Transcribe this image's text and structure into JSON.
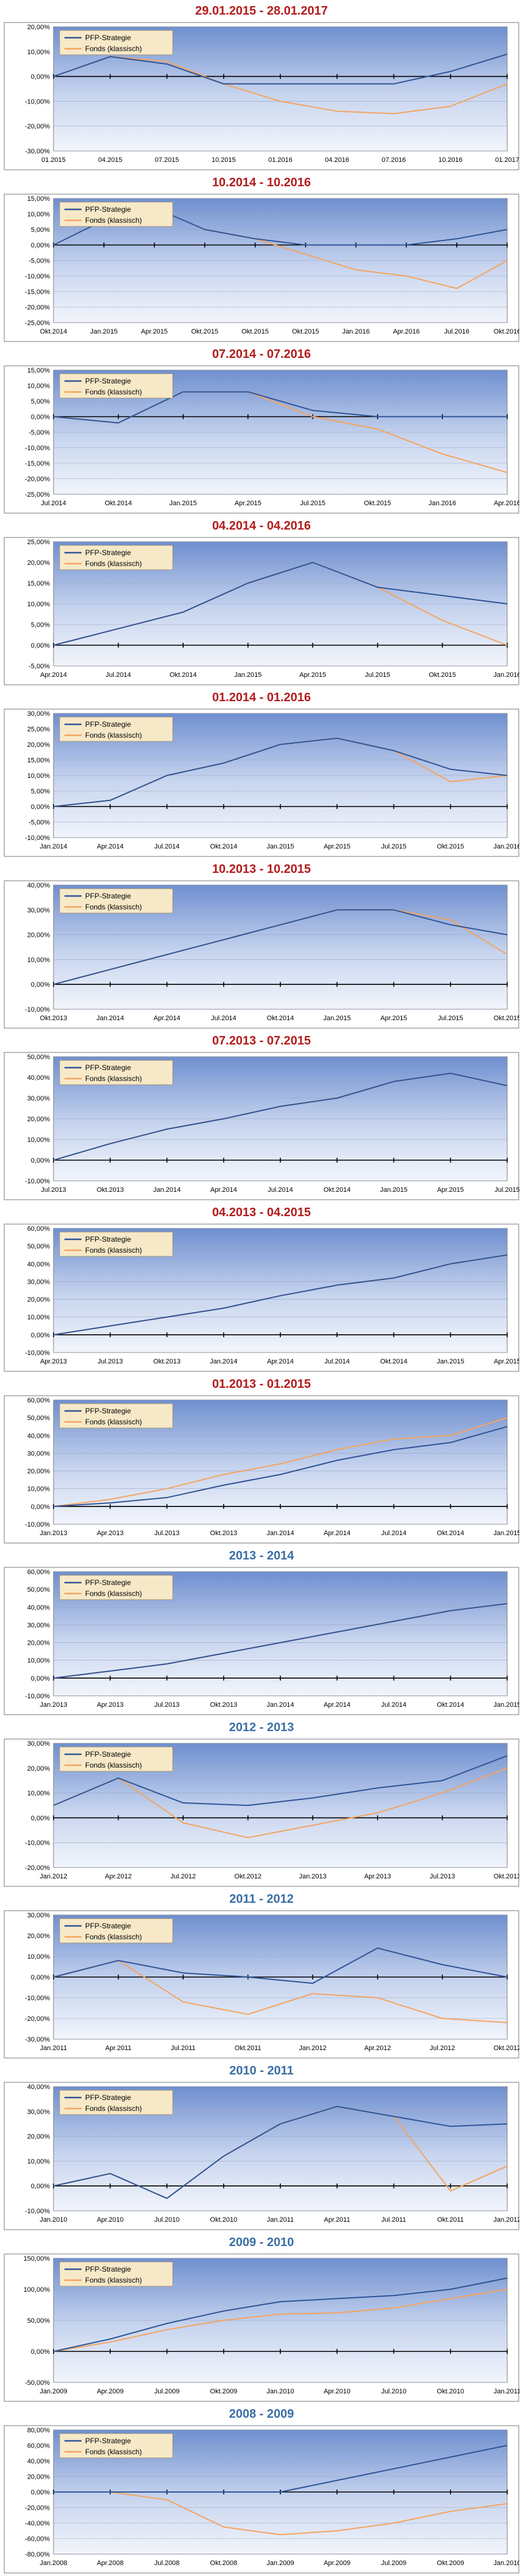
{
  "colors": {
    "pfp": "#2f5597",
    "fonds": "#f4a460",
    "title_red": "#b31b1b",
    "title_blue": "#3b6ea5"
  },
  "chart_data": [
    {
      "type": "line",
      "title": "29.01.2015 - 28.01.2017",
      "title_color": "red",
      "x": [
        "01.2015",
        "04.2015",
        "07.2015",
        "10.2015",
        "01.2016",
        "04.2016",
        "07.2016",
        "10.2016",
        "01.2017"
      ],
      "ylim": [
        -30,
        20
      ],
      "ystep": 10,
      "ydec": true,
      "legend": [
        "PFP-Strategie",
        "Fonds (klassisch)"
      ],
      "series": [
        {
          "name": "PFP-Strategie",
          "values": [
            0,
            8,
            5,
            -3,
            -3,
            -3,
            -3,
            2,
            9
          ]
        },
        {
          "name": "Fonds (klassisch)",
          "values": [
            0,
            8,
            6,
            -3,
            -10,
            -14,
            -15,
            -12,
            -3
          ]
        }
      ]
    },
    {
      "type": "line",
      "title": "10.2014 - 10.2016",
      "title_color": "red",
      "x": [
        "Okt.2014",
        "Jan.2015",
        "Apr.2015",
        "Okt.2015",
        "Okt.2015",
        "Okt.2015",
        "Jan.2016",
        "Apr.2016",
        "Jul.2016",
        "Okt.2016"
      ],
      "ylim": [
        -25,
        15
      ],
      "ystep": 5,
      "ydec": true,
      "legend": [
        "PFP-Strategie",
        "Fonds (klassisch)"
      ],
      "series": [
        {
          "name": "PFP-Strategie",
          "values": [
            0,
            8,
            12,
            5,
            2,
            0,
            0,
            0,
            2,
            5
          ]
        },
        {
          "name": "Fonds (klassisch)",
          "values": [
            0,
            8,
            12,
            5,
            2,
            -3,
            -8,
            -10,
            -14,
            -5
          ]
        }
      ]
    },
    {
      "type": "line",
      "title": "07.2014 - 07.2016",
      "title_color": "red",
      "x": [
        "Jul.2014",
        "Okt.2014",
        "Jan.2015",
        "Apr.2015",
        "Jul.2015",
        "Okt.2015",
        "Jan.2016",
        "Apr.2016"
      ],
      "ylim": [
        -25,
        15
      ],
      "ystep": 5,
      "ydec": true,
      "legend": [
        "PFP-Strategie",
        "Fonds (klassisch)"
      ],
      "series": [
        {
          "name": "PFP-Strategie",
          "values": [
            0,
            -2,
            8,
            8,
            2,
            0,
            0,
            0
          ]
        },
        {
          "name": "Fonds (klassisch)",
          "values": [
            0,
            -2,
            8,
            8,
            0,
            -4,
            -12,
            -18
          ]
        }
      ]
    },
    {
      "type": "line",
      "title": "04.2014 - 04.2016",
      "title_color": "red",
      "x": [
        "Apr.2014",
        "Jul.2014",
        "Okt.2014",
        "Jan.2015",
        "Apr.2015",
        "Jul.2015",
        "Okt.2015",
        "Jan.2016"
      ],
      "ylim": [
        -5,
        25
      ],
      "ystep": 5,
      "ydec": true,
      "legend": [
        "PFP-Strategie",
        "Fonds (klassisch)"
      ],
      "series": [
        {
          "name": "PFP-Strategie",
          "values": [
            0,
            4,
            8,
            15,
            20,
            14,
            12,
            10
          ]
        },
        {
          "name": "Fonds (klassisch)",
          "values": [
            0,
            4,
            8,
            15,
            20,
            14,
            6,
            0
          ]
        }
      ]
    },
    {
      "type": "line",
      "title": "01.2014 - 01.2016",
      "title_color": "red",
      "x": [
        "Jan.2014",
        "Apr.2014",
        "Jul.2014",
        "Okt.2014",
        "Jan.2015",
        "Apr.2015",
        "Jul.2015",
        "Okt.2015",
        "Jan.2016"
      ],
      "ylim": [
        -10,
        30
      ],
      "ystep": 5,
      "ydec": true,
      "legend": [
        "PFP-Strategie",
        "Fonds (klassisch)"
      ],
      "series": [
        {
          "name": "PFP-Strategie",
          "values": [
            0,
            2,
            10,
            14,
            20,
            22,
            18,
            12,
            10
          ]
        },
        {
          "name": "Fonds (klassisch)",
          "values": [
            0,
            2,
            10,
            14,
            20,
            22,
            18,
            8,
            10
          ]
        }
      ]
    },
    {
      "type": "line",
      "title": "10.2013 - 10.2015",
      "title_color": "red",
      "x": [
        "Okt.2013",
        "Jan.2014",
        "Apr.2014",
        "Jul.2014",
        "Okt.2014",
        "Jan.2015",
        "Apr.2015",
        "Jul.2015",
        "Okt.2015"
      ],
      "ylim": [
        -10,
        40
      ],
      "ystep": 10,
      "ydec": true,
      "legend": [
        "PFP-Strategie",
        "Fonds (klassisch)"
      ],
      "series": [
        {
          "name": "PFP-Strategie",
          "values": [
            0,
            6,
            12,
            18,
            24,
            30,
            30,
            24,
            20
          ]
        },
        {
          "name": "Fonds (klassisch)",
          "values": [
            0,
            6,
            12,
            18,
            24,
            30,
            30,
            26,
            12
          ]
        }
      ]
    },
    {
      "type": "line",
      "title": "07.2013 - 07.2015",
      "title_color": "red",
      "x": [
        "Jul.2013",
        "Okt.2013",
        "Jan.2014",
        "Apr.2014",
        "Jul.2014",
        "Okt.2014",
        "Jan.2015",
        "Apr.2015",
        "Jul.2015"
      ],
      "ylim": [
        -10,
        50
      ],
      "ystep": 10,
      "ydec": true,
      "legend": [
        "PFP-Strategie",
        "Fonds (klassisch)"
      ],
      "series": [
        {
          "name": "PFP-Strategie",
          "values": [
            0,
            8,
            15,
            20,
            26,
            30,
            38,
            42,
            36
          ]
        },
        {
          "name": "Fonds (klassisch)",
          "values": [
            0,
            8,
            15,
            20,
            26,
            30,
            38,
            42,
            36
          ]
        }
      ]
    },
    {
      "type": "line",
      "title": "04.2013 - 04.2015",
      "title_color": "red",
      "x": [
        "Apr.2013",
        "Jul.2013",
        "Okt.2013",
        "Jan.2014",
        "Apr.2014",
        "Jul.2014",
        "Okt.2014",
        "Jan.2015",
        "Apr.2015"
      ],
      "ylim": [
        -10,
        60
      ],
      "ystep": 10,
      "ydec": true,
      "legend": [
        "PFP-Strategie",
        "Fonds (klassisch)"
      ],
      "series": [
        {
          "name": "PFP-Strategie",
          "values": [
            0,
            5,
            10,
            15,
            22,
            28,
            32,
            40,
            45
          ]
        },
        {
          "name": "Fonds (klassisch)",
          "values": [
            0,
            5,
            10,
            15,
            22,
            28,
            32,
            40,
            45
          ]
        }
      ]
    },
    {
      "type": "line",
      "title": "01.2013 - 01.2015",
      "title_color": "red",
      "x": [
        "Jan.2013",
        "Apr.2013",
        "Jul.2013",
        "Okt.2013",
        "Jan.2014",
        "Apr.2014",
        "Jul.2014",
        "Okt.2014",
        "Jan.2015"
      ],
      "ylim": [
        -10,
        60
      ],
      "ystep": 10,
      "ydec": true,
      "legend": [
        "PFP-Strategie",
        "Fonds (klassisch)"
      ],
      "series": [
        {
          "name": "PFP-Strategie",
          "values": [
            0,
            2,
            5,
            12,
            18,
            26,
            32,
            36,
            45
          ]
        },
        {
          "name": "Fonds (klassisch)",
          "values": [
            0,
            4,
            10,
            18,
            24,
            32,
            38,
            40,
            50
          ]
        }
      ]
    },
    {
      "type": "line",
      "title": "2013 - 2014",
      "title_color": "blue",
      "x": [
        "Jan.2013",
        "Apr.2013",
        "Jul.2013",
        "Okt.2013",
        "Jan.2014",
        "Apr.2014",
        "Jul.2014",
        "Okt.2014",
        "Jan.2015"
      ],
      "ylim": [
        -10,
        60
      ],
      "ystep": 10,
      "ydec": true,
      "legend": [
        "PFP-Strategie",
        "Fonds (klassisch)"
      ],
      "series": [
        {
          "name": "PFP-Strategie",
          "values": [
            0,
            4,
            8,
            14,
            20,
            26,
            32,
            38,
            42
          ]
        },
        {
          "name": "Fonds (klassisch)",
          "values": [
            0,
            4,
            8,
            14,
            20,
            26,
            32,
            38,
            42
          ]
        }
      ]
    },
    {
      "type": "line",
      "title": "2012 - 2013",
      "title_color": "blue",
      "x": [
        "Jan.2012",
        "Apr.2012",
        "Jul.2012",
        "Okt.2012",
        "Jan.2013",
        "Apr.2013",
        "Jul.2013",
        "Okt.2013"
      ],
      "ylim": [
        -20,
        30
      ],
      "ystep": 10,
      "ydec": true,
      "legend": [
        "PFP-Strategie",
        "Fonds (klassisch)"
      ],
      "series": [
        {
          "name": "PFP-Strategie",
          "values": [
            5,
            16,
            6,
            5,
            8,
            12,
            15,
            25
          ]
        },
        {
          "name": "Fonds (klassisch)",
          "values": [
            5,
            16,
            -2,
            -8,
            -3,
            2,
            10,
            20
          ]
        }
      ]
    },
    {
      "type": "line",
      "title": "2011 - 2012",
      "title_color": "blue",
      "x": [
        "Jan.2011",
        "Apr.2011",
        "Jul.2011",
        "Okt.2011",
        "Jan.2012",
        "Apr.2012",
        "Jul.2012",
        "Okt.2012"
      ],
      "ylim": [
        -30,
        30
      ],
      "ystep": 10,
      "ydec": true,
      "legend": [
        "PFP-Strategie",
        "Fonds (klassisch)"
      ],
      "series": [
        {
          "name": "PFP-Strategie",
          "values": [
            0,
            8,
            2,
            0,
            -3,
            14,
            6,
            0
          ]
        },
        {
          "name": "Fonds (klassisch)",
          "values": [
            0,
            8,
            -12,
            -18,
            -8,
            -10,
            -20,
            -22
          ]
        }
      ]
    },
    {
      "type": "line",
      "title": "2010 - 2011",
      "title_color": "blue",
      "x": [
        "Jan.2010",
        "Apr.2010",
        "Jul.2010",
        "Okt.2010",
        "Jan.2011",
        "Apr.2011",
        "Jul.2011",
        "Okt.2011",
        "Jan.2012"
      ],
      "ylim": [
        -10,
        40
      ],
      "ystep": 10,
      "ydec": true,
      "legend": [
        "PFP-Strategie",
        "Fonds (klassisch)"
      ],
      "series": [
        {
          "name": "PFP-Strategie",
          "values": [
            0,
            5,
            -5,
            12,
            25,
            32,
            28,
            24,
            25
          ]
        },
        {
          "name": "Fonds (klassisch)",
          "values": [
            0,
            5,
            -5,
            12,
            25,
            32,
            28,
            -2,
            8
          ]
        }
      ]
    },
    {
      "type": "line",
      "title": "2009 - 2010",
      "title_color": "blue",
      "x": [
        "Jan.2009",
        "Apr.2009",
        "Jul.2009",
        "Okt.2009",
        "Jan.2010",
        "Apr.2010",
        "Jul.2010",
        "Okt.2010",
        "Jan.2011"
      ],
      "ylim": [
        -50,
        150
      ],
      "ystep": 50,
      "ydec": true,
      "legend": [
        "PFP-Strategie",
        "Fonds (klassisch)"
      ],
      "series": [
        {
          "name": "PFP-Strategie",
          "values": [
            0,
            20,
            45,
            65,
            80,
            85,
            90,
            100,
            118
          ]
        },
        {
          "name": "Fonds (klassisch)",
          "values": [
            0,
            15,
            35,
            50,
            60,
            62,
            70,
            85,
            100
          ]
        }
      ]
    },
    {
      "type": "line",
      "title": "2008 - 2009",
      "title_color": "blue",
      "x": [
        "Jan.2008",
        "Apr.2008",
        "Jul.2008",
        "Okt.2008",
        "Jan.2009",
        "Apr.2009",
        "Jul.2009",
        "Okt.2009",
        "Jan.2010"
      ],
      "ylim": [
        -80,
        80
      ],
      "ystep": 20,
      "ydec": true,
      "legend": [
        "PFP-Strategie",
        "Fonds (klassisch)"
      ],
      "series": [
        {
          "name": "PFP-Strategie",
          "values": [
            0,
            0,
            0,
            0,
            0,
            15,
            30,
            45,
            60
          ]
        },
        {
          "name": "Fonds (klassisch)",
          "values": [
            0,
            0,
            -10,
            -45,
            -55,
            -50,
            -40,
            -25,
            -15
          ]
        }
      ]
    }
  ]
}
